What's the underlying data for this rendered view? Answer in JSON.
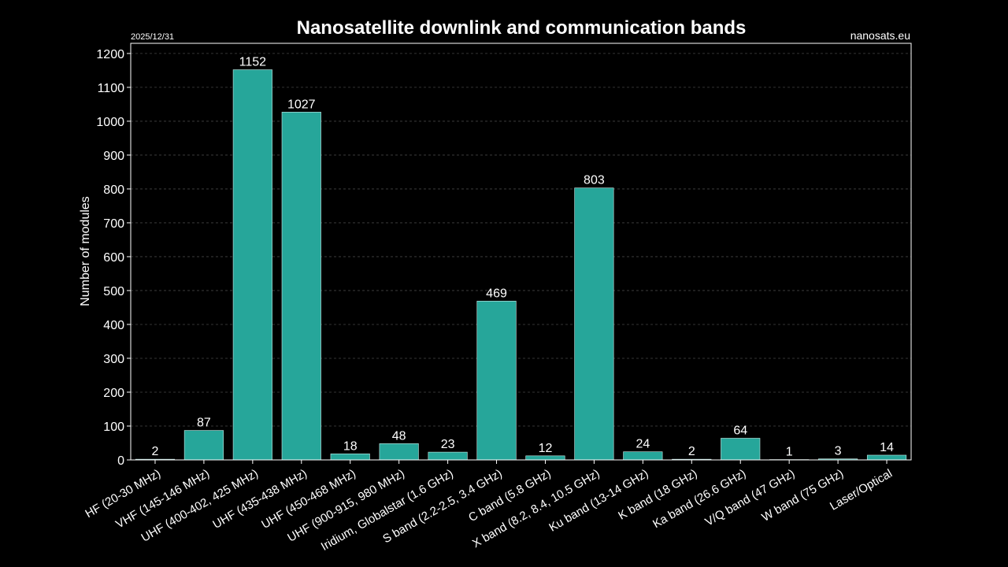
{
  "header": {
    "date": "2025/12/31",
    "source": "nanosats.eu"
  },
  "colors": {
    "background": "#000000",
    "bar": "#26a69a",
    "bar_edge": "#c8ece8",
    "text": "#ffffff",
    "grid": "#444444",
    "axes": "#ffffff"
  },
  "chart_data": {
    "type": "bar",
    "title": "Nanosatellite downlink and communication bands",
    "xlabel": "",
    "ylabel": "Number of modules",
    "ylim": [
      0,
      1230
    ],
    "yticks": [
      0,
      100,
      200,
      300,
      400,
      500,
      600,
      700,
      800,
      900,
      1000,
      1100,
      1200
    ],
    "grid": "horizontal-dashed",
    "categories": [
      "HF (20-30 MHz)",
      "VHF (145-146 MHz)",
      "UHF (400-402, 425 MHz)",
      "UHF (435-438 MHz)",
      "UHF (450-468 MHz)",
      "UHF (900-915, 980 MHz)",
      "Iridium, Globalstar (1.6 GHz)",
      "S band (2.2-2.5, 3.4 GHz)",
      "C band (5.8 GHz)",
      "X band (8.2, 8.4, 10.5 GHz)",
      "Ku band (13-14 GHz)",
      "K band (18 GHz)",
      "Ka band (26.6 GHz)",
      "V/Q band (47 GHz)",
      "W band (75 GHz)",
      "Laser/Optical"
    ],
    "values": [
      2,
      87,
      1152,
      1027,
      18,
      48,
      23,
      469,
      12,
      803,
      24,
      2,
      64,
      1,
      3,
      14
    ]
  }
}
